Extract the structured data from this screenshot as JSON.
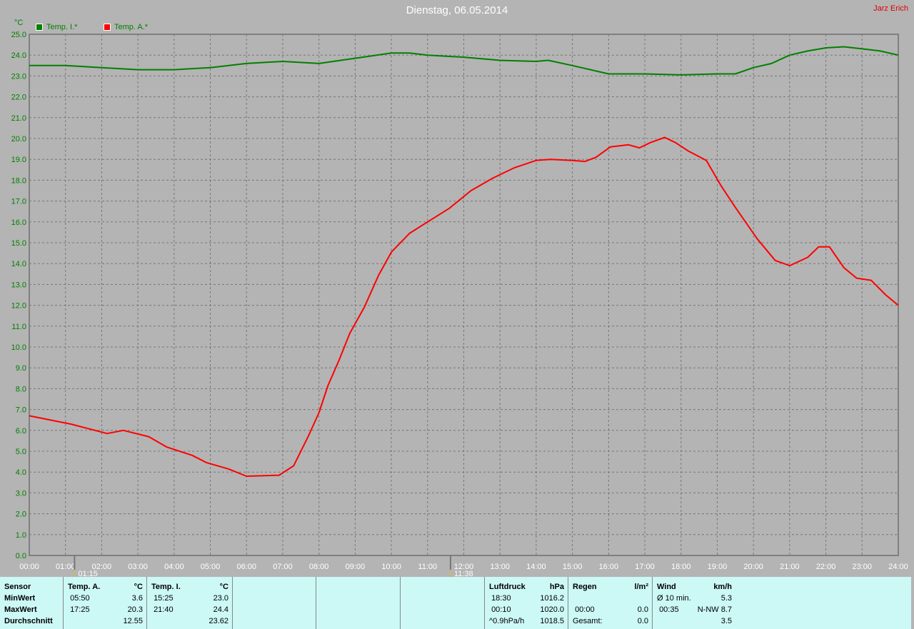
{
  "title": "Dienstag, 06.05.2014",
  "author": "Jarz Erich",
  "colors": {
    "temp_inside": "#008000",
    "temp_outside": "#ff0000",
    "background": "#b4b4b4",
    "table": "#ccf8f6"
  },
  "chart_data": {
    "type": "line",
    "ylabel": "°C",
    "ylim": [
      0,
      25
    ],
    "yticks": [
      "0.0",
      "1.0",
      "2.0",
      "3.0",
      "4.0",
      "5.0",
      "6.0",
      "7.0",
      "8.0",
      "9.0",
      "10.0",
      "11.0",
      "12.0",
      "13.0",
      "14.0",
      "15.0",
      "16.0",
      "17.0",
      "18.0",
      "19.0",
      "20.0",
      "21.0",
      "22.0",
      "23.0",
      "24.0",
      "25.0"
    ],
    "xlim": [
      "00:00",
      "24:00"
    ],
    "xticks": [
      "00:00",
      "01:00",
      "02:00",
      "03:00",
      "04:00",
      "05:00",
      "06:00",
      "07:00",
      "08:00",
      "09:00",
      "10:00",
      "11:00",
      "12:00",
      "13:00",
      "14:00",
      "15:00",
      "16:00",
      "17:00",
      "18:00",
      "19:00",
      "20:00",
      "21:00",
      "22:00",
      "23:00",
      "24:00"
    ],
    "grid": true,
    "legend_position": "top-left",
    "markers": [
      {
        "label": "01:15",
        "icon": "moon-icon"
      },
      {
        "label": "11:38",
        "icon": "sun-icon"
      }
    ],
    "series": [
      {
        "name": "Temp. I.*",
        "color": "#008000",
        "points": [
          [
            "00:00",
            23.5
          ],
          [
            "01:00",
            23.5
          ],
          [
            "02:00",
            23.4
          ],
          [
            "03:00",
            23.3
          ],
          [
            "04:00",
            23.3
          ],
          [
            "05:00",
            23.4
          ],
          [
            "06:00",
            23.6
          ],
          [
            "07:00",
            23.7
          ],
          [
            "08:00",
            23.6
          ],
          [
            "09:00",
            23.85
          ],
          [
            "10:00",
            24.1
          ],
          [
            "10:30",
            24.1
          ],
          [
            "11:00",
            24.0
          ],
          [
            "12:00",
            23.9
          ],
          [
            "13:00",
            23.75
          ],
          [
            "14:00",
            23.7
          ],
          [
            "14:20",
            23.75
          ],
          [
            "15:00",
            23.5
          ],
          [
            "16:00",
            23.1
          ],
          [
            "17:00",
            23.1
          ],
          [
            "18:00",
            23.05
          ],
          [
            "19:00",
            23.1
          ],
          [
            "19:30",
            23.1
          ],
          [
            "20:00",
            23.4
          ],
          [
            "20:30",
            23.6
          ],
          [
            "21:00",
            24.0
          ],
          [
            "21:30",
            24.2
          ],
          [
            "22:00",
            24.35
          ],
          [
            "22:30",
            24.4
          ],
          [
            "23:00",
            24.3
          ],
          [
            "23:30",
            24.2
          ],
          [
            "24:00",
            24.0
          ]
        ]
      },
      {
        "name": "Temp. A.*",
        "color": "#ff0000",
        "points": [
          [
            "00:00",
            6.7
          ],
          [
            "01:09",
            6.3
          ],
          [
            "02:09",
            5.85
          ],
          [
            "02:36",
            6.0
          ],
          [
            "03:18",
            5.7
          ],
          [
            "03:48",
            5.2
          ],
          [
            "04:30",
            4.8
          ],
          [
            "04:54",
            4.45
          ],
          [
            "05:30",
            4.15
          ],
          [
            "06:00",
            3.8
          ],
          [
            "06:54",
            3.85
          ],
          [
            "07:18",
            4.3
          ],
          [
            "07:42",
            5.7
          ],
          [
            "08:00",
            6.85
          ],
          [
            "08:15",
            8.15
          ],
          [
            "08:33",
            9.35
          ],
          [
            "08:51",
            10.65
          ],
          [
            "09:15",
            11.9
          ],
          [
            "09:39",
            13.45
          ],
          [
            "10:00",
            14.55
          ],
          [
            "10:30",
            15.45
          ],
          [
            "11:00",
            16.0
          ],
          [
            "11:36",
            16.65
          ],
          [
            "12:12",
            17.5
          ],
          [
            "12:48",
            18.1
          ],
          [
            "13:24",
            18.6
          ],
          [
            "14:00",
            18.95
          ],
          [
            "14:24",
            19.0
          ],
          [
            "15:00",
            18.95
          ],
          [
            "15:21",
            18.9
          ],
          [
            "15:39",
            19.1
          ],
          [
            "16:03",
            19.6
          ],
          [
            "16:33",
            19.7
          ],
          [
            "16:51",
            19.55
          ],
          [
            "17:09",
            19.8
          ],
          [
            "17:33",
            20.05
          ],
          [
            "17:51",
            19.8
          ],
          [
            "18:12",
            19.4
          ],
          [
            "18:42",
            18.95
          ],
          [
            "19:06",
            17.75
          ],
          [
            "19:30",
            16.7
          ],
          [
            "20:06",
            15.2
          ],
          [
            "20:36",
            14.15
          ],
          [
            "21:00",
            13.9
          ],
          [
            "21:30",
            14.3
          ],
          [
            "21:48",
            14.8
          ],
          [
            "22:06",
            14.8
          ],
          [
            "22:30",
            13.8
          ],
          [
            "22:51",
            13.3
          ],
          [
            "23:15",
            13.2
          ],
          [
            "23:39",
            12.5
          ],
          [
            "24:00",
            12.0
          ]
        ]
      }
    ]
  },
  "table": {
    "labels": {
      "sensor": "Sensor",
      "min": "MinWert",
      "max": "MaxWert",
      "avg": "Durchschnitt"
    },
    "temp_a": {
      "name": "Temp. A.",
      "unit": "°C",
      "min_time": "05:50",
      "min": "3.6",
      "max_time": "17:25",
      "max": "20.3",
      "avg": "12.55"
    },
    "temp_i": {
      "name": "Temp. I.",
      "unit": "°C",
      "min_time": "15:25",
      "min": "23.0",
      "max_time": "21:40",
      "max": "24.4",
      "avg": "23.62"
    },
    "pressure": {
      "name": "Luftdruck",
      "unit": "hPa",
      "r1_time": "18:30",
      "r1": "1016.2",
      "r2_time": "00:10",
      "r2": "1020.0",
      "r3_label": "^0.9hPa/h",
      "r3": "1018.5"
    },
    "rain": {
      "name": "Regen",
      "unit": "l/m²",
      "r2_time": "00:00",
      "r2": "0.0",
      "r3_label": "Gesamt:",
      "r3": "0.0"
    },
    "wind": {
      "name": "Wind",
      "unit": "km/h",
      "r1_label": "Ø 10 min.",
      "r1": "5.3",
      "r2_time": "00:35",
      "r2": "N-NW 8.7",
      "r3": "3.5"
    }
  }
}
